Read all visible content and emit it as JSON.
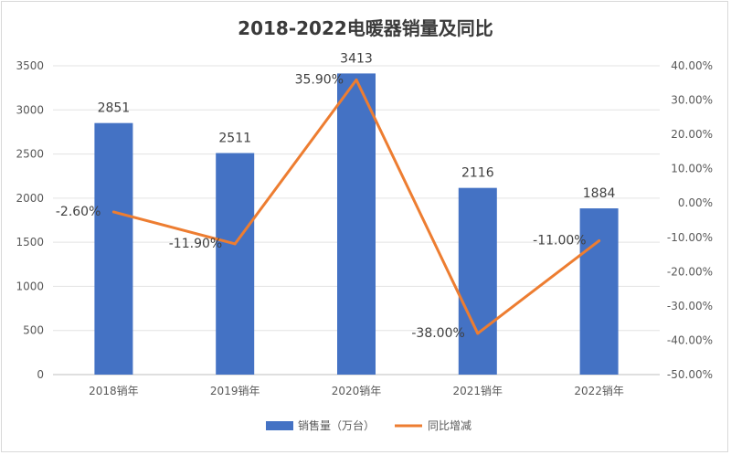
{
  "chart_data": {
    "type": "bar",
    "title": "2018-2022电暖器销量及同比",
    "categories": [
      "2018销年",
      "2019销年",
      "2020销年",
      "2021销年",
      "2022销年"
    ],
    "series": [
      {
        "name": "销售量（万台）",
        "type": "bar",
        "axis": "left",
        "color": "#4472C4",
        "values": [
          2851,
          2511,
          3413,
          2116,
          1884
        ],
        "labels": [
          "2851",
          "2511",
          "3413",
          "2116",
          "1884"
        ]
      },
      {
        "name": "同比增减",
        "type": "line",
        "axis": "right",
        "color": "#ED7D31",
        "values": [
          -2.6,
          -11.9,
          35.9,
          -38.0,
          -11.0
        ],
        "labels": [
          "-2.60%",
          "-11.90%",
          "35.90%",
          "-38.00%",
          "-11.00%"
        ]
      }
    ],
    "left_axis": {
      "ylim": [
        0,
        3500
      ],
      "ticks": [
        0,
        500,
        1000,
        1500,
        2000,
        2500,
        3000,
        3500
      ],
      "tick_labels": [
        "0",
        "500",
        "1000",
        "1500",
        "2000",
        "2500",
        "3000",
        "3500"
      ]
    },
    "right_axis": {
      "ylim": [
        -50,
        40
      ],
      "ticks": [
        -50,
        -40,
        -30,
        -20,
        -10,
        0,
        10,
        20,
        30,
        40
      ],
      "tick_labels": [
        "-50.00%",
        "-40.00%",
        "-30.00%",
        "-20.00%",
        "-10.00%",
        "0.00%",
        "10.00%",
        "20.00%",
        "30.00%",
        "40.00%"
      ]
    },
    "grid": true,
    "legend_position": "bottom"
  }
}
